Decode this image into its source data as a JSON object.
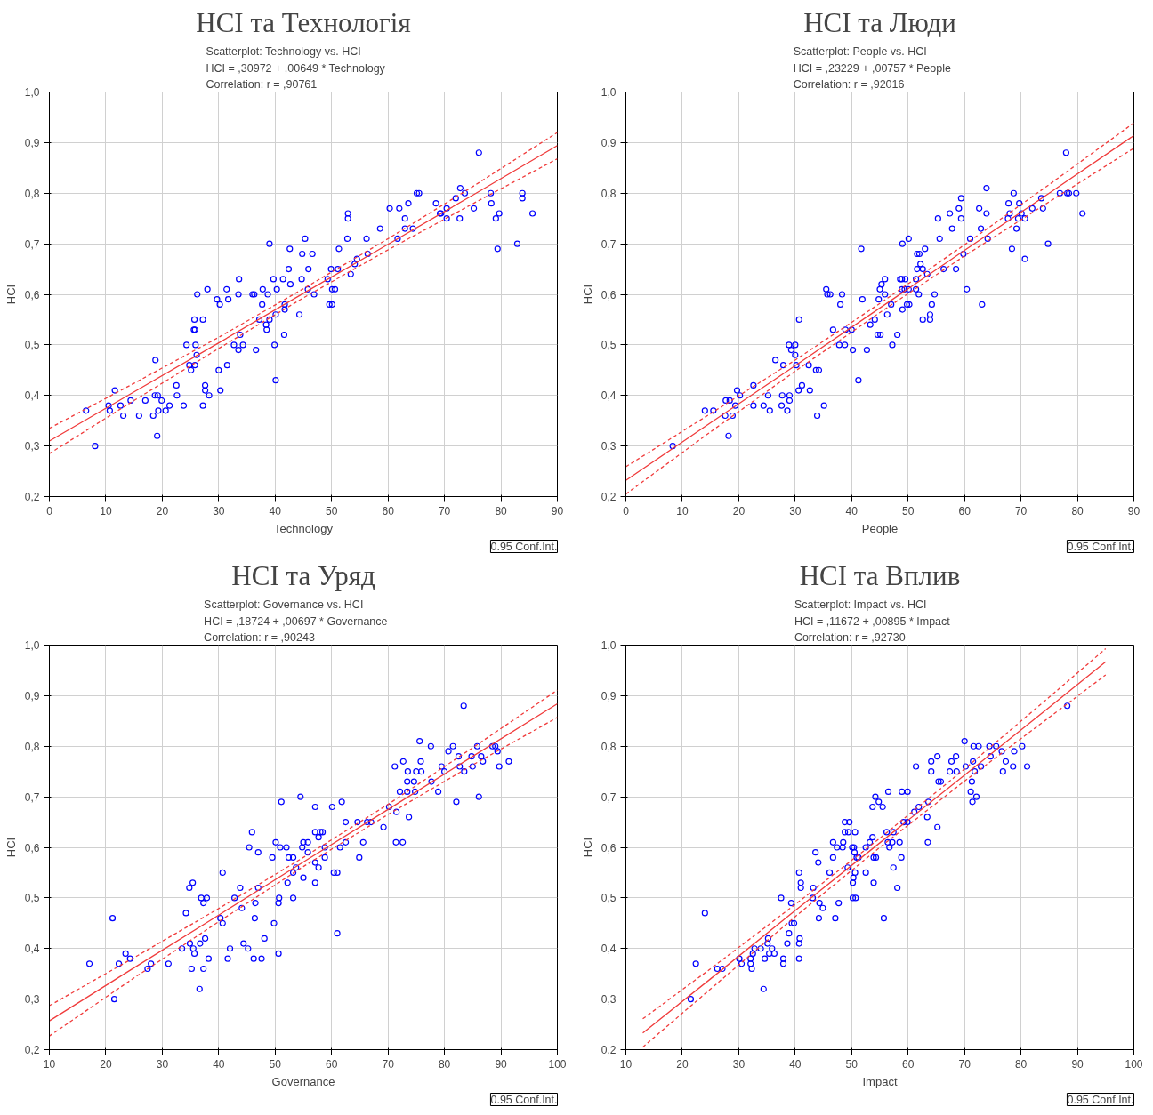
{
  "chart_data": [
    {
      "type": "scatter",
      "title": "HCI та Технологія",
      "subtitle": "Scatterplot: Technology vs. HCI\nHCI      = ,30972 + ,00649 * Technology\nCorrelation: r =  ,90761",
      "xlabel": "Technology",
      "ylabel": "HCI",
      "annotations": [
        "0.95 Conf.Int."
      ],
      "xlim": [
        0,
        90
      ],
      "ylim": [
        0.2,
        1.0
      ],
      "xticks": [
        0,
        10,
        20,
        30,
        40,
        50,
        60,
        70,
        80,
        90
      ],
      "yticks": [
        {
          "value": 0.2,
          "label": "0,2"
        },
        {
          "value": 0.3,
          "label": "0,3"
        },
        {
          "value": 0.4,
          "label": "0,4"
        },
        {
          "value": 0.5,
          "label": "0,5"
        },
        {
          "value": 0.6,
          "label": "0,6"
        },
        {
          "value": 0.7,
          "label": "0,7"
        },
        {
          "value": 0.8,
          "label": "0,8"
        },
        {
          "value": 0.9,
          "label": "0,9"
        },
        {
          "value": 1.0,
          "label": "1,0"
        }
      ],
      "grid": true,
      "marker": "circle",
      "series": [
        {
          "type": "scatter",
          "color": "#0000ff",
          "x": [
            6.5,
            8.1,
            10.5,
            10.7,
            11.6,
            12.6,
            13.1,
            14.4,
            15.9,
            17.0,
            18.4,
            18.7,
            18.8,
            19.2,
            19.3,
            19.1,
            19.9,
            20.6,
            21.3,
            22.5,
            22.6,
            23.8,
            24.3,
            24.8,
            25.1,
            25.6,
            25.8,
            25.7,
            25.8,
            25.9,
            26.1,
            26.2,
            27.2,
            27.2,
            27.6,
            27.6,
            28.0,
            28.3,
            29.7,
            30.0,
            30.2,
            30.3,
            31.4,
            31.5,
            31.7,
            32.7,
            33.5,
            33.5,
            33.6,
            33.8,
            34.3,
            36.0,
            36.3,
            36.6,
            37.2,
            37.7,
            37.8,
            38.4,
            38.5,
            38.7,
            39.0,
            39.0,
            39.7,
            39.9,
            40.1,
            40.1,
            40.3,
            41.4,
            41.6,
            41.7,
            41.7,
            42.4,
            42.6,
            42.7,
            44.3,
            44.7,
            44.8,
            45.3,
            45.8,
            45.9,
            46.6,
            46.9,
            49.3,
            49.6,
            49.9,
            50.1,
            50.1,
            50.6,
            51.1,
            51.3,
            52.8,
            52.9,
            52.9,
            53.4,
            54.1,
            54.5,
            56.2,
            56.4,
            58.6,
            60.3,
            61.7,
            62.0,
            63.0,
            63.0,
            63.6,
            64.4,
            65.1,
            65.5,
            68.5,
            69.2,
            69.4,
            70.4,
            70.4,
            72.0,
            72.7,
            72.8,
            73.6,
            75.2,
            76.1,
            78.2,
            78.3,
            79.1,
            79.4,
            79.7,
            82.9,
            83.8,
            83.8,
            85.6
          ],
          "values": [
            0.37,
            0.3,
            0.38,
            0.37,
            0.41,
            0.38,
            0.36,
            0.39,
            0.36,
            0.39,
            0.36,
            0.4,
            0.47,
            0.4,
            0.37,
            0.32,
            0.39,
            0.37,
            0.38,
            0.42,
            0.4,
            0.38,
            0.5,
            0.46,
            0.45,
            0.53,
            0.53,
            0.55,
            0.46,
            0.5,
            0.48,
            0.6,
            0.55,
            0.38,
            0.42,
            0.41,
            0.61,
            0.4,
            0.59,
            0.45,
            0.58,
            0.41,
            0.61,
            0.46,
            0.59,
            0.5,
            0.49,
            0.6,
            0.63,
            0.52,
            0.5,
            0.6,
            0.6,
            0.49,
            0.55,
            0.58,
            0.61,
            0.54,
            0.53,
            0.6,
            0.7,
            0.55,
            0.63,
            0.5,
            0.43,
            0.56,
            0.61,
            0.63,
            0.52,
            0.58,
            0.57,
            0.65,
            0.69,
            0.62,
            0.56,
            0.63,
            0.68,
            0.71,
            0.61,
            0.65,
            0.68,
            0.6,
            0.63,
            0.58,
            0.65,
            0.58,
            0.61,
            0.61,
            0.65,
            0.69,
            0.71,
            0.75,
            0.76,
            0.64,
            0.66,
            0.67,
            0.71,
            0.68,
            0.73,
            0.77,
            0.71,
            0.77,
            0.75,
            0.73,
            0.78,
            0.73,
            0.8,
            0.8,
            0.78,
            0.76,
            0.76,
            0.77,
            0.75,
            0.79,
            0.75,
            0.81,
            0.8,
            0.77,
            0.88,
            0.8,
            0.78,
            0.75,
            0.69,
            0.76,
            0.7,
            0.8,
            0.79,
            0.76
          ]
        },
        {
          "type": "line",
          "marker": "none",
          "line_style": "solid",
          "color": "#f03c3c",
          "x": [
            0,
            15,
            30,
            45,
            60,
            75,
            90
          ],
          "values": [
            0.31,
            0.407,
            0.504,
            0.602,
            0.699,
            0.796,
            0.894
          ]
        },
        {
          "type": "line",
          "marker": "none",
          "line_style": "dashed",
          "color": "#f03c3c",
          "x": [
            0,
            15,
            30,
            45,
            60,
            75,
            90
          ],
          "values": [
            0.285,
            0.39,
            0.493,
            0.593,
            0.688,
            0.779,
            0.868
          ]
        },
        {
          "type": "line",
          "marker": "none",
          "line_style": "dashed",
          "color": "#f03c3c",
          "x": [
            0,
            15,
            30,
            45,
            60,
            75,
            90
          ],
          "values": [
            0.335,
            0.424,
            0.515,
            0.611,
            0.71,
            0.813,
            0.92
          ]
        }
      ]
    },
    {
      "type": "scatter",
      "title": "HCI та Люди",
      "subtitle": "Scatterplot: People   vs. HCI\nHCI      = ,23229 + ,00757 * People\nCorrelation: r =  ,92016",
      "xlabel": "People",
      "ylabel": "HCI",
      "annotations": [
        "0.95 Conf.Int."
      ],
      "xlim": [
        0,
        90
      ],
      "ylim": [
        0.2,
        1.0
      ],
      "xticks": [
        0,
        10,
        20,
        30,
        40,
        50,
        60,
        70,
        80,
        90
      ],
      "yticks": [
        {
          "value": 0.2,
          "label": "0,2"
        },
        {
          "value": 0.3,
          "label": "0,3"
        },
        {
          "value": 0.4,
          "label": "0,4"
        },
        {
          "value": 0.5,
          "label": "0,5"
        },
        {
          "value": 0.6,
          "label": "0,6"
        },
        {
          "value": 0.7,
          "label": "0,7"
        },
        {
          "value": 0.8,
          "label": "0,8"
        },
        {
          "value": 0.9,
          "label": "0,9"
        },
        {
          "value": 1.0,
          "label": "1,0"
        }
      ],
      "grid": true,
      "marker": "circle",
      "series": [
        {
          "type": "scatter",
          "color": "#0000ff",
          "x": [
            8.3,
            14.0,
            15.5,
            17.6,
            17.7,
            18.4,
            18.2,
            18.9,
            19.4,
            19.7,
            20.2,
            22.6,
            22.6,
            24.4,
            25.2,
            25.5,
            26.5,
            27.6,
            27.7,
            27.9,
            28.6,
            28.9,
            29.0,
            29.0,
            29.3,
            30.0,
            30.0,
            30.2,
            30.6,
            30.7,
            31.2,
            32.4,
            32.6,
            33.7,
            34.2,
            33.9,
            35.1,
            35.5,
            35.7,
            36.2,
            36.7,
            37.8,
            38.0,
            38.3,
            38.8,
            38.9,
            40.0,
            40.2,
            41.2,
            41.7,
            41.9,
            42.7,
            43.3,
            44.1,
            44.6,
            45.1,
            44.8,
            45.0,
            45.3,
            45.9,
            45.9,
            46.3,
            47.0,
            47.2,
            48.1,
            48.6,
            48.9,
            49.5,
            48.9,
            49.4,
            49.0,
            49.0,
            49.8,
            50.2,
            50.1,
            50.1,
            51.4,
            51.4,
            51.6,
            51.6,
            52.0,
            51.9,
            52.2,
            52.6,
            52.6,
            53.0,
            53.4,
            53.9,
            53.9,
            54.2,
            54.7,
            55.3,
            55.6,
            56.3,
            57.4,
            57.8,
            58.5,
            59.0,
            59.4,
            59.4,
            59.8,
            60.4,
            61.0,
            62.6,
            62.9,
            63.1,
            63.9,
            63.9,
            64.1,
            67.7,
            67.8,
            68.0,
            68.4,
            68.7,
            69.2,
            69.5,
            69.7,
            70.1,
            70.7,
            70.7,
            72.0,
            73.6,
            73.9,
            74.8,
            76.9,
            78.0,
            78.2,
            78.5,
            79.8,
            80.9
          ],
          "values": [
            0.3,
            0.37,
            0.37,
            0.36,
            0.39,
            0.39,
            0.32,
            0.36,
            0.38,
            0.41,
            0.4,
            0.42,
            0.38,
            0.38,
            0.4,
            0.37,
            0.47,
            0.38,
            0.4,
            0.46,
            0.37,
            0.5,
            0.4,
            0.39,
            0.49,
            0.5,
            0.48,
            0.46,
            0.41,
            0.55,
            0.42,
            0.46,
            0.41,
            0.45,
            0.45,
            0.36,
            0.38,
            0.61,
            0.6,
            0.6,
            0.53,
            0.5,
            0.58,
            0.6,
            0.5,
            0.53,
            0.53,
            0.49,
            0.43,
            0.69,
            0.59,
            0.49,
            0.54,
            0.55,
            0.52,
            0.52,
            0.59,
            0.61,
            0.62,
            0.63,
            0.6,
            0.56,
            0.58,
            0.5,
            0.52,
            0.63,
            0.63,
            0.63,
            0.61,
            0.61,
            0.7,
            0.57,
            0.58,
            0.58,
            0.61,
            0.71,
            0.63,
            0.61,
            0.65,
            0.68,
            0.68,
            0.6,
            0.66,
            0.65,
            0.55,
            0.69,
            0.64,
            0.56,
            0.55,
            0.58,
            0.6,
            0.75,
            0.71,
            0.65,
            0.76,
            0.73,
            0.65,
            0.77,
            0.79,
            0.75,
            0.68,
            0.61,
            0.71,
            0.77,
            0.73,
            0.58,
            0.81,
            0.76,
            0.71,
            0.75,
            0.78,
            0.76,
            0.69,
            0.8,
            0.73,
            0.75,
            0.78,
            0.76,
            0.75,
            0.67,
            0.77,
            0.79,
            0.77,
            0.7,
            0.8,
            0.88,
            0.8,
            0.8,
            0.8,
            0.76
          ]
        },
        {
          "type": "line",
          "marker": "none",
          "line_style": "solid",
          "color": "#f03c3c",
          "x": [
            0,
            15,
            30,
            45,
            60,
            75,
            90
          ],
          "values": [
            0.232,
            0.346,
            0.459,
            0.573,
            0.687,
            0.8,
            0.914
          ]
        },
        {
          "type": "line",
          "marker": "none",
          "line_style": "dashed",
          "color": "#f03c3c",
          "x": [
            0,
            15,
            30,
            45,
            60,
            75,
            90
          ],
          "values": [
            0.205,
            0.328,
            0.448,
            0.564,
            0.676,
            0.783,
            0.889
          ]
        },
        {
          "type": "line",
          "marker": "none",
          "line_style": "dashed",
          "color": "#f03c3c",
          "x": [
            0,
            15,
            30,
            45,
            60,
            75,
            90
          ],
          "values": [
            0.259,
            0.364,
            0.47,
            0.582,
            0.698,
            0.817,
            0.939
          ]
        }
      ]
    },
    {
      "type": "scatter",
      "title": "HCI та Уряд",
      "subtitle": "Scatterplot: Governance vs. HCI\nHCI      = ,18724 + ,00697 * Governance\nCorrelation: r =  ,90243",
      "xlabel": "Governance",
      "ylabel": "HCI",
      "annotations": [
        "0.95 Conf.Int."
      ],
      "xlim": [
        10,
        100
      ],
      "ylim": [
        0.2,
        1.0
      ],
      "xticks": [
        10,
        20,
        30,
        40,
        50,
        60,
        70,
        80,
        90,
        100
      ],
      "yticks": [
        {
          "value": 0.2,
          "label": "0,2"
        },
        {
          "value": 0.3,
          "label": "0,3"
        },
        {
          "value": 0.4,
          "label": "0,4"
        },
        {
          "value": 0.5,
          "label": "0,5"
        },
        {
          "value": 0.6,
          "label": "0,6"
        },
        {
          "value": 0.7,
          "label": "0,7"
        },
        {
          "value": 0.8,
          "label": "0,8"
        },
        {
          "value": 0.9,
          "label": "0,9"
        },
        {
          "value": 1.0,
          "label": "1,0"
        }
      ],
      "grid": true,
      "marker": "circle",
      "series": [
        {
          "type": "scatter",
          "color": "#0000ff",
          "x": [
            17.1,
            21.2,
            21.5,
            22.3,
            23.5,
            24.3,
            27.4,
            28.0,
            31.1,
            33.5,
            34.2,
            34.8,
            35.4,
            34.9,
            35.2,
            35.5,
            35.7,
            36.6,
            36.7,
            36.9,
            37.3,
            37.3,
            37.6,
            37.9,
            38.2,
            40.3,
            40.7,
            40.7,
            41.6,
            42.0,
            42.8,
            43.8,
            44.1,
            44.4,
            45.2,
            45.4,
            45.9,
            46.2,
            46.4,
            46.5,
            47.0,
            47.0,
            47.6,
            48.1,
            49.5,
            49.8,
            50.1,
            50.6,
            50.6,
            50.7,
            50.9,
            51.1,
            52.0,
            52.2,
            52.4,
            53.2,
            53.2,
            53.2,
            53.7,
            54.5,
            54.8,
            55.0,
            55.0,
            55.8,
            55.8,
            57.1,
            57.1,
            57.1,
            57.1,
            57.7,
            57.7,
            58.0,
            58.4,
            58.8,
            58.8,
            60.1,
            60.4,
            61.0,
            61.0,
            61.5,
            61.8,
            62.5,
            62.5,
            64.6,
            64.9,
            65.6,
            66.3,
            67.0,
            69.2,
            70.2,
            71.2,
            71.4,
            71.5,
            72.1,
            72.6,
            72.7,
            73.4,
            73.4,
            73.5,
            73.7,
            74.6,
            74.8,
            75.0,
            75.6,
            75.8,
            75.9,
            77.6,
            77.7,
            78.9,
            79.5,
            80.0,
            80.7,
            81.5,
            82.1,
            82.5,
            82.7,
            83.4,
            83.5,
            84.8,
            85.0,
            85.8,
            86.1,
            86.5,
            86.8,
            88.5,
            89.0,
            89.4,
            89.7,
            91.4
          ],
          "values": [
            0.37,
            0.46,
            0.3,
            0.37,
            0.39,
            0.38,
            0.36,
            0.37,
            0.37,
            0.4,
            0.47,
            0.52,
            0.53,
            0.41,
            0.36,
            0.4,
            0.39,
            0.32,
            0.41,
            0.5,
            0.49,
            0.36,
            0.42,
            0.5,
            0.38,
            0.46,
            0.45,
            0.55,
            0.38,
            0.4,
            0.5,
            0.52,
            0.48,
            0.41,
            0.4,
            0.6,
            0.63,
            0.38,
            0.46,
            0.49,
            0.52,
            0.59,
            0.38,
            0.42,
            0.58,
            0.45,
            0.61,
            0.49,
            0.39,
            0.5,
            0.6,
            0.69,
            0.6,
            0.53,
            0.58,
            0.58,
            0.55,
            0.5,
            0.56,
            0.7,
            0.6,
            0.61,
            0.54,
            0.61,
            0.59,
            0.68,
            0.63,
            0.57,
            0.53,
            0.62,
            0.56,
            0.63,
            0.63,
            0.6,
            0.58,
            0.68,
            0.55,
            0.55,
            0.43,
            0.6,
            0.69,
            0.65,
            0.61,
            0.65,
            0.58,
            0.61,
            0.65,
            0.65,
            0.64,
            0.68,
            0.76,
            0.61,
            0.67,
            0.71,
            0.61,
            0.77,
            0.73,
            0.71,
            0.75,
            0.66,
            0.73,
            0.71,
            0.75,
            0.81,
            0.77,
            0.75,
            0.8,
            0.73,
            0.71,
            0.76,
            0.75,
            0.79,
            0.8,
            0.69,
            0.78,
            0.76,
            0.88,
            0.75,
            0.78,
            0.76,
            0.8,
            0.7,
            0.78,
            0.77,
            0.8,
            0.8,
            0.79,
            0.76,
            0.77
          ]
        },
        {
          "type": "line",
          "marker": "none",
          "line_style": "solid",
          "color": "#f03c3c",
          "x": [
            10,
            25,
            40,
            55,
            70,
            85,
            100
          ],
          "values": [
            0.257,
            0.362,
            0.466,
            0.571,
            0.675,
            0.78,
            0.884
          ]
        },
        {
          "type": "line",
          "marker": "none",
          "line_style": "dashed",
          "color": "#f03c3c",
          "x": [
            10,
            25,
            40,
            55,
            70,
            85,
            100
          ],
          "values": [
            0.227,
            0.342,
            0.453,
            0.562,
            0.665,
            0.763,
            0.857
          ]
        },
        {
          "type": "line",
          "marker": "none",
          "line_style": "dashed",
          "color": "#f03c3c",
          "x": [
            10,
            25,
            40,
            55,
            70,
            85,
            100
          ],
          "values": [
            0.287,
            0.382,
            0.479,
            0.58,
            0.685,
            0.797,
            0.911
          ]
        }
      ]
    },
    {
      "type": "scatter",
      "title": "HCI та Вплив",
      "subtitle": "Scatterplot: Impact   vs. HCI\nHCI      = ,11672 + ,00895 * Impact\nCorrelation: r =  ,92730",
      "xlabel": "Impact",
      "ylabel": "HCI",
      "annotations": [
        "0.95 Conf.Int."
      ],
      "xlim": [
        10,
        100
      ],
      "ylim": [
        0.2,
        1.0
      ],
      "xticks": [
        10,
        20,
        30,
        40,
        50,
        60,
        70,
        80,
        90,
        100
      ],
      "yticks": [
        {
          "value": 0.2,
          "label": "0,2"
        },
        {
          "value": 0.3,
          "label": "0,3"
        },
        {
          "value": 0.4,
          "label": "0,4"
        },
        {
          "value": 0.5,
          "label": "0,5"
        },
        {
          "value": 0.6,
          "label": "0,6"
        },
        {
          "value": 0.7,
          "label": "0,7"
        },
        {
          "value": 0.8,
          "label": "0,8"
        },
        {
          "value": 0.9,
          "label": "0,9"
        },
        {
          "value": 1.0,
          "label": "1,0"
        }
      ],
      "grid": true,
      "marker": "circle",
      "series": [
        {
          "type": "scatter",
          "color": "#0000ff",
          "x": [
            21.5,
            22.4,
            24.0,
            26.2,
            27.1,
            30.1,
            30.5,
            32.1,
            32.1,
            32.3,
            32.5,
            32.8,
            33.9,
            34.4,
            34.6,
            35.1,
            35.2,
            35.4,
            35.9,
            36.3,
            37.5,
            37.9,
            37.9,
            38.6,
            38.9,
            39.3,
            39.4,
            39.8,
            40.7,
            40.7,
            40.7,
            40.8,
            41.0,
            41.0,
            43.1,
            43.2,
            43.6,
            44.1,
            44.2,
            44.3,
            44.9,
            46.1,
            46.7,
            46.7,
            47.1,
            47.4,
            47.7,
            48.4,
            48.5,
            48.8,
            48.8,
            49.3,
            49.6,
            49.4,
            50.1,
            50.2,
            50.2,
            50.3,
            50.4,
            50.5,
            50.6,
            50.6,
            50.7,
            50.9,
            51.2,
            52.5,
            52.5,
            53.2,
            53.7,
            53.7,
            53.9,
            53.9,
            54.2,
            54.3,
            54.8,
            55.5,
            55.7,
            56.2,
            56.4,
            56.5,
            56.7,
            57.2,
            57.4,
            57.4,
            58.1,
            58.5,
            58.8,
            58.9,
            59.2,
            59.9,
            59.9,
            61.1,
            61.9,
            61.4,
            63.4,
            63.5,
            63.6,
            64.1,
            64.1,
            65.2,
            65.2,
            65.4,
            65.8,
            67.4,
            67.7,
            68.5,
            68.6,
            70.0,
            70.2,
            71.1,
            71.3,
            71.4,
            71.5,
            71.6,
            71.8,
            72.1,
            72.5,
            72.9,
            74.4,
            74.6,
            75.6,
            76.6,
            76.8,
            77.3,
            78.6,
            78.8,
            80.2,
            81.1,
            88.2
          ],
          "values": [
            0.3,
            0.37,
            0.47,
            0.36,
            0.36,
            0.38,
            0.37,
            0.38,
            0.37,
            0.36,
            0.39,
            0.4,
            0.4,
            0.32,
            0.38,
            0.41,
            0.42,
            0.39,
            0.4,
            0.39,
            0.5,
            0.38,
            0.37,
            0.41,
            0.43,
            0.49,
            0.45,
            0.45,
            0.55,
            0.41,
            0.38,
            0.42,
            0.53,
            0.52,
            0.5,
            0.52,
            0.59,
            0.57,
            0.46,
            0.49,
            0.48,
            0.55,
            0.61,
            0.58,
            0.46,
            0.6,
            0.49,
            0.6,
            0.61,
            0.65,
            0.63,
            0.56,
            0.65,
            0.63,
            0.6,
            0.53,
            0.5,
            0.54,
            0.6,
            0.59,
            0.55,
            0.63,
            0.5,
            0.58,
            0.58,
            0.6,
            0.55,
            0.61,
            0.62,
            0.68,
            0.58,
            0.53,
            0.7,
            0.58,
            0.69,
            0.68,
            0.46,
            0.63,
            0.61,
            0.71,
            0.6,
            0.61,
            0.63,
            0.56,
            0.52,
            0.61,
            0.58,
            0.71,
            0.65,
            0.71,
            0.65,
            0.67,
            0.68,
            0.76,
            0.66,
            0.61,
            0.69,
            0.77,
            0.75,
            0.78,
            0.64,
            0.73,
            0.73,
            0.75,
            0.77,
            0.78,
            0.75,
            0.81,
            0.76,
            0.71,
            0.73,
            0.69,
            0.77,
            0.8,
            0.75,
            0.7,
            0.8,
            0.76,
            0.8,
            0.78,
            0.8,
            0.79,
            0.75,
            0.77,
            0.76,
            0.79,
            0.8,
            0.76,
            0.88
          ]
        },
        {
          "type": "line",
          "marker": "none",
          "line_style": "solid",
          "color": "#f03c3c",
          "x": [
            13,
            25,
            40,
            55,
            70,
            85,
            95
          ],
          "values": [
            0.233,
            0.34,
            0.475,
            0.609,
            0.743,
            0.877,
            0.967
          ]
        },
        {
          "type": "line",
          "marker": "none",
          "line_style": "dashed",
          "color": "#f03c3c",
          "x": [
            13,
            25,
            40,
            55,
            70,
            85,
            95
          ],
          "values": [
            0.205,
            0.32,
            0.463,
            0.6,
            0.731,
            0.857,
            0.941
          ]
        },
        {
          "type": "line",
          "marker": "none",
          "line_style": "dashed",
          "color": "#f03c3c",
          "x": [
            13,
            25,
            40,
            55,
            70,
            85,
            95
          ],
          "values": [
            0.261,
            0.36,
            0.487,
            0.618,
            0.755,
            0.897,
            0.993
          ]
        }
      ]
    }
  ]
}
